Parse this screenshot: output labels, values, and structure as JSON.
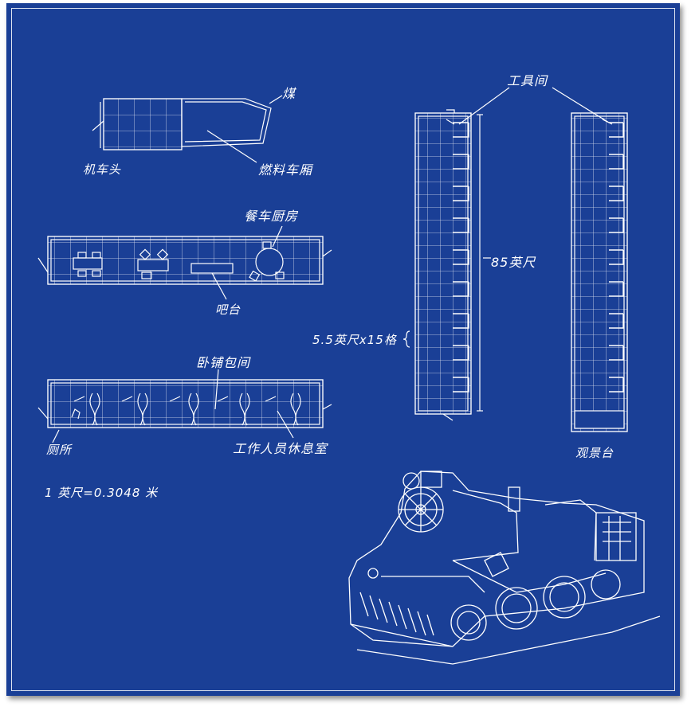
{
  "labels": {
    "coal": "煤",
    "locomotive": "机车头",
    "tender": "燃料车厢",
    "dining_kitchen": "餐车厨房",
    "bar": "吧台",
    "sleeper_compartment": "卧铺包间",
    "toilet": "厕所",
    "staff_lounge": "工作人员休息室",
    "unit_note": "1  英尺=0.3048  米",
    "tool_room": "工具间",
    "length_85ft": "85英尺",
    "grid_scale": "5.5英尺x15格",
    "observation_deck": "观景台"
  },
  "colors": {
    "background": "#1a3f96",
    "line": "#ffffff"
  }
}
